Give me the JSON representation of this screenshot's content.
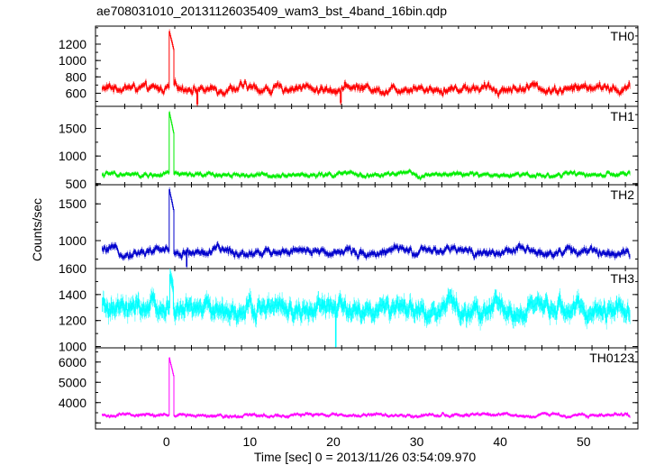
{
  "chart_data": {
    "type": "line",
    "title": "ae708031010_20131126035409_wam3_bst_4band_16bin.qdp",
    "xlabel": "Time [sec] 0 = 2013/11/26 03:54:09.970",
    "ylabel": "Counts/sec",
    "xlim": [
      -8.5,
      56.5
    ],
    "x_ticks": [
      0,
      10,
      20,
      30,
      40,
      50
    ],
    "grid": false,
    "x_start": -7.7,
    "x_end": 55.6,
    "x_step": 0.0625,
    "panels": [
      {
        "name": "TH0",
        "color": "#ff0000",
        "ylim": [
          440,
          1420
        ],
        "y_ticks": [
          600,
          800,
          1000,
          1200
        ],
        "baseline": 660,
        "noise_amplitude": 55,
        "error_bar": 30,
        "burst": {
          "start": 0.3,
          "end": 0.9,
          "peak": 1380
        },
        "dips": [
          {
            "x": 3.7,
            "value": 470
          },
          {
            "x": 20.9,
            "value": 490
          }
        ]
      },
      {
        "name": "TH1",
        "color": "#00ee00",
        "ylim": [
          480,
          1900
        ],
        "y_ticks": [
          500,
          1000,
          1500
        ],
        "baseline": 660,
        "noise_amplitude": 45,
        "error_bar": 30,
        "burst": {
          "start": 0.35,
          "end": 0.9,
          "peak": 1800
        },
        "dips": []
      },
      {
        "name": "TH2",
        "color": "#0000cc",
        "ylim": [
          620,
          1760
        ],
        "y_ticks": [
          1000,
          1500
        ],
        "baseline": 850,
        "noise_amplitude": 60,
        "error_bar": 35,
        "burst": {
          "start": 0.35,
          "end": 0.9,
          "peak": 1700
        },
        "dips": [
          {
            "x": 2.4,
            "value": 650
          }
        ]
      },
      {
        "name": "TH3",
        "color": "#00ffff",
        "ylim": [
          990,
          1600
        ],
        "y_ticks": [
          1000,
          1200,
          1400,
          1600
        ],
        "baseline": 1280,
        "noise_amplitude": 75,
        "error_bar": 55,
        "burst": {
          "start": 0.4,
          "end": 0.8,
          "peak": 1560
        },
        "dips": [
          {
            "x": 20.3,
            "value": 1000
          }
        ]
      },
      {
        "name": "TH0123",
        "color": "#ff00ff",
        "ylim": [
          2700,
          6700
        ],
        "y_ticks": [
          3000,
          4000,
          5000,
          6000
        ],
        "y_tick_labels_shown": [
          4000,
          5000,
          6000
        ],
        "baseline": 3380,
        "noise_amplitude": 90,
        "error_bar": 60,
        "burst": {
          "start": 0.3,
          "end": 0.9,
          "peak": 6300
        },
        "dips": []
      }
    ]
  }
}
